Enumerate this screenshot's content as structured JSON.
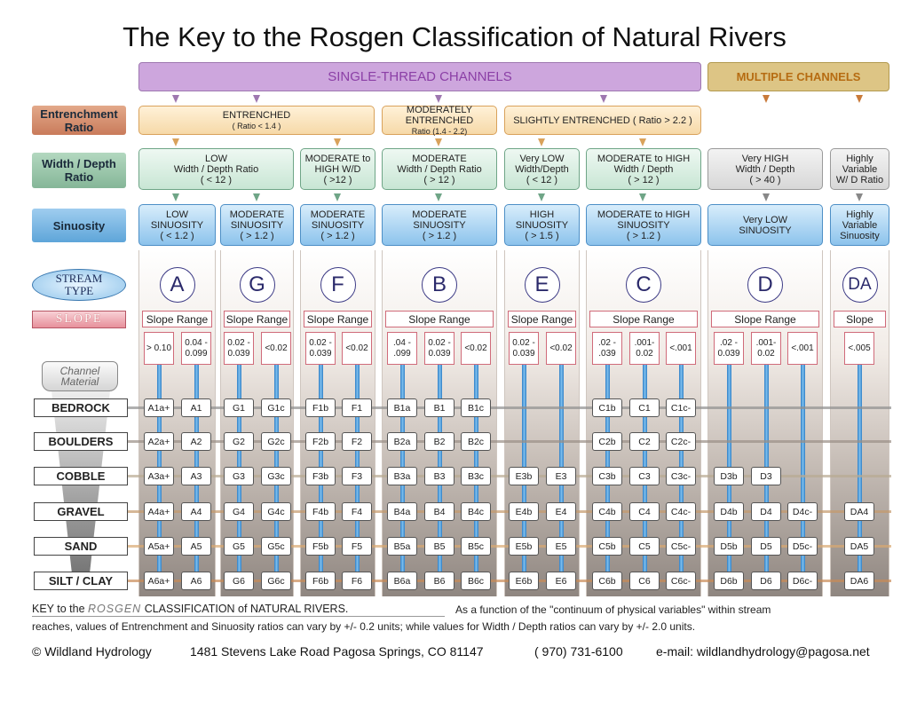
{
  "title": "The Key to the Rosgen Classification of Natural Rivers",
  "bands": {
    "single": "SINGLE-THREAD  CHANNELS",
    "multiple": "MULTIPLE  CHANNELS"
  },
  "row_labels": {
    "entrenchment": "Entrenchment Ratio",
    "width_depth": "Width / Depth Ratio",
    "sinuosity": "Sinuosity",
    "stream_type": "STREAM TYPE",
    "slope": "SLOPE",
    "channel_material": "Channel Material"
  },
  "entrenchment": [
    {
      "text": "ENTRENCHED",
      "sub": "( Ratio  < 1.4 )"
    },
    {
      "text": "MODERATELY  ENTRENCHED",
      "sub": "Ratio (1.4 - 2.2)"
    },
    {
      "text": "SLIGHTLY  ENTRENCHED ( Ratio > 2.2 )",
      "sub": ""
    }
  ],
  "width_depth": [
    {
      "line1": "LOW",
      "line2": "Width / Depth Ratio",
      "line3": "( < 12 )"
    },
    {
      "line1": "MODERATE to",
      "line2": "HIGH   W/D",
      "line3": "( >12 )"
    },
    {
      "line1": "MODERATE",
      "line2": "Width / Depth Ratio",
      "line3": "( > 12 )"
    },
    {
      "line1": "Very LOW",
      "line2": "Width/Depth",
      "line3": "( < 12 )"
    },
    {
      "line1": "MODERATE to HIGH",
      "line2": "Width / Depth",
      "line3": "( > 12 )"
    },
    {
      "line1": "Very HIGH",
      "line2": "Width / Depth",
      "line3": "( > 40 )"
    },
    {
      "line1": "Highly",
      "line2": "Variable",
      "line3": "W/ D Ratio"
    }
  ],
  "sinuosity": [
    {
      "line1": "LOW",
      "line2": "SINUOSITY",
      "line3": "( < 1.2 )"
    },
    {
      "line1": "MODERATE",
      "line2": "SINUOSITY",
      "line3": "( > 1.2 )"
    },
    {
      "line1": "MODERATE",
      "line2": "SINUOSITY",
      "line3": "( > 1.2 )"
    },
    {
      "line1": "MODERATE",
      "line2": "SINUOSITY",
      "line3": "( > 1.2 )"
    },
    {
      "line1": "HIGH",
      "line2": "SINUOSITY",
      "line3": "( > 1.5 )"
    },
    {
      "line1": "MODERATE to HIGH",
      "line2": "SINUOSITY",
      "line3": "( > 1.2 )"
    },
    {
      "line1": "Very LOW",
      "line2": "SINUOSITY",
      "line3": ""
    },
    {
      "line1": "Highly",
      "line2": "Variable",
      "line3": "Sinuosity"
    }
  ],
  "stream_types": [
    {
      "letter": "A",
      "slope_label": "Slope Range",
      "slopes": [
        "> 0.10",
        "0.04 - 0.099"
      ]
    },
    {
      "letter": "G",
      "slope_label": "Slope Range",
      "slopes": [
        "0.02 - 0.039",
        "<0.02"
      ]
    },
    {
      "letter": "F",
      "slope_label": "Slope Range",
      "slopes": [
        "0.02 - 0.039",
        "<0.02"
      ]
    },
    {
      "letter": "B",
      "slope_label": "Slope  Range",
      "slopes": [
        ".04 - .099",
        "0.02 - 0.039",
        "<0.02"
      ]
    },
    {
      "letter": "E",
      "slope_label": "Slope Range",
      "slopes": [
        "0.02 - 0.039",
        "<0.02"
      ]
    },
    {
      "letter": "C",
      "slope_label": "Slope  Range",
      "slopes": [
        ".02 - .039",
        ".001- 0.02",
        "<.001"
      ]
    },
    {
      "letter": "D",
      "slope_label": "Slope  Range",
      "slopes": [
        ".02 - 0.039",
        ".001- 0.02",
        "<.001"
      ]
    },
    {
      "letter": "DA",
      "slope_label": "Slope",
      "slopes": [
        "<.005"
      ]
    }
  ],
  "materials": [
    "BEDROCK",
    "BOULDERS",
    "COBBLE",
    "GRAVEL",
    "SAND",
    "SILT / CLAY"
  ],
  "cells": [
    [
      "A1a+",
      "A1",
      "G1",
      "G1c",
      "F1b",
      "F1",
      "B1a",
      "B1",
      "B1c",
      "",
      "",
      "C1b",
      "C1",
      "C1c-",
      "",
      "",
      "",
      ""
    ],
    [
      "A2a+",
      "A2",
      "G2",
      "G2c",
      "F2b",
      "F2",
      "B2a",
      "B2",
      "B2c",
      "",
      "",
      "C2b",
      "C2",
      "C2c-",
      "",
      "",
      "",
      ""
    ],
    [
      "A3a+",
      "A3",
      "G3",
      "G3c",
      "F3b",
      "F3",
      "B3a",
      "B3",
      "B3c",
      "E3b",
      "E3",
      "C3b",
      "C3",
      "C3c-",
      "D3b",
      "D3",
      "",
      ""
    ],
    [
      "A4a+",
      "A4",
      "G4",
      "G4c",
      "F4b",
      "F4",
      "B4a",
      "B4",
      "B4c",
      "E4b",
      "E4",
      "C4b",
      "C4",
      "C4c-",
      "D4b",
      "D4",
      "D4c-",
      "DA4"
    ],
    [
      "A5a+",
      "A5",
      "G5",
      "G5c",
      "F5b",
      "F5",
      "B5a",
      "B5",
      "B5c",
      "E5b",
      "E5",
      "C5b",
      "C5",
      "C5c-",
      "D5b",
      "D5",
      "D5c-",
      "DA5"
    ],
    [
      "A6a+",
      "A6",
      "G6",
      "G6c",
      "F6b",
      "F6",
      "B6a",
      "B6",
      "B6c",
      "E6b",
      "E6",
      "C6b",
      "C6",
      "C6c-",
      "D6b",
      "D6",
      "D6c-",
      "DA6"
    ]
  ],
  "caption": {
    "key_prefix": "KEY to the",
    "key_rosgen": "ROSGEN",
    "key_suffix": "CLASSIFICATION of NATURAL RIVERS.",
    "line1_right": "As a function of the  \"continuum of physical variables\"  within stream",
    "line2": "reaches, values of  Entrenchment  and  Sinuosity  ratios can vary by +/- 0.2 units; while values for  Width / Depth  ratios can vary by +/- 2.0 units."
  },
  "footer": {
    "company": "© Wildland Hydrology",
    "address": "1481 Stevens Lake Road Pagosa Springs, CO 81147",
    "phone": "( 970) 731-6100",
    "email": "e-mail: wildlandhydrology@pagosa.net"
  },
  "colors": {
    "single_band": "#cda6dd",
    "multiple_band": "#ddc585",
    "entrenchment": "#f6d9a8",
    "width_depth": "#c8e6d4",
    "sinuosity": "#8cc3ec",
    "stream_letter": "#2b2a6b",
    "pipe": "#2f7fc6"
  }
}
